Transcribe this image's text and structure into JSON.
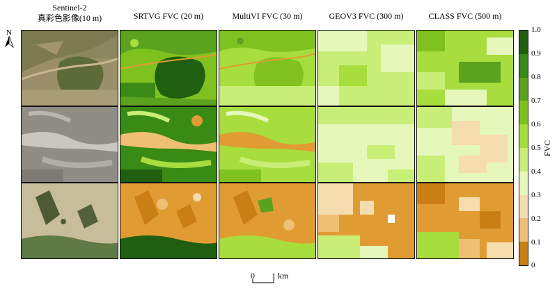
{
  "columns": [
    {
      "title_line1": "Sentinel-2",
      "title_line2": "真彩色影像(10 m)"
    },
    {
      "title": "SRTVG FVC (20 m)"
    },
    {
      "title": "MultiVI FVC (30 m)"
    },
    {
      "title": "GEOV3 FVC (300 m)"
    },
    {
      "title": "CLASS FVC (500 m)"
    }
  ],
  "north_label": "N",
  "colorbar": {
    "label": "FVC",
    "ticks": [
      "1.0",
      "0.9",
      "0.8",
      "0.7",
      "0.6",
      "0.5",
      "0.4",
      "0.3",
      "0.2",
      "0.1",
      "0"
    ],
    "colors": [
      "#1f5f0f",
      "#3a8a16",
      "#5ba21e",
      "#7fc21f",
      "#a7dd3c",
      "#c9ee77",
      "#e6f7bb",
      "#f5ddb0",
      "#efbf73",
      "#e09c32",
      "#c97f14"
    ]
  },
  "scalebar": {
    "left_label": "0",
    "right_label": "1 km"
  }
}
